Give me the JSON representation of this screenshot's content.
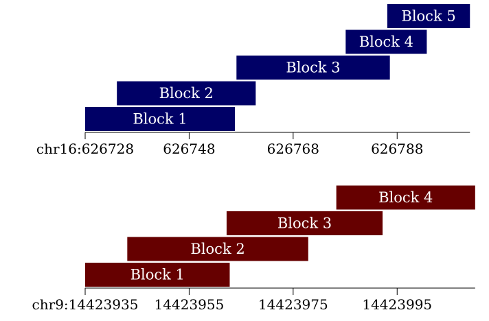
{
  "chart_data": [
    {
      "type": "bar",
      "orientation": "horizontal-range",
      "chromosome": "chr16",
      "color": "#000066",
      "xlim": [
        626728,
        626802
      ],
      "ticks": [
        {
          "value": 626728,
          "label": "chr16:626728"
        },
        {
          "value": 626748,
          "label": "626748"
        },
        {
          "value": 626768,
          "label": "626768"
        },
        {
          "value": 626788,
          "label": "626788"
        }
      ],
      "blocks": [
        {
          "label": "Block 1",
          "start": 626728,
          "end": 626756.8
        },
        {
          "label": "Block 2",
          "start": 626734.1,
          "end": 626760.8
        },
        {
          "label": "Block 3",
          "start": 626757.1,
          "end": 626786.6
        },
        {
          "label": "Block 4",
          "start": 626778.1,
          "end": 626793.7
        },
        {
          "label": "Block 5",
          "start": 626786.1,
          "end": 626802
        }
      ]
    },
    {
      "type": "bar",
      "orientation": "horizontal-range",
      "chromosome": "chr9",
      "color": "#660000",
      "xlim": [
        14423935,
        14424010
      ],
      "ticks": [
        {
          "value": 14423935,
          "label": "chr9:14423935"
        },
        {
          "value": 14423955,
          "label": "14423955"
        },
        {
          "value": 14423975,
          "label": "14423975"
        },
        {
          "value": 14423995,
          "label": "14423995"
        }
      ],
      "blocks": [
        {
          "label": "Block 1",
          "start": 14423935,
          "end": 14423962.8
        },
        {
          "label": "Block 2",
          "start": 14423943.1,
          "end": 14423977.9
        },
        {
          "label": "Block 3",
          "start": 14423962.2,
          "end": 14423992.2
        },
        {
          "label": "Block 4",
          "start": 14423983.3,
          "end": 14424010
        }
      ]
    }
  ]
}
